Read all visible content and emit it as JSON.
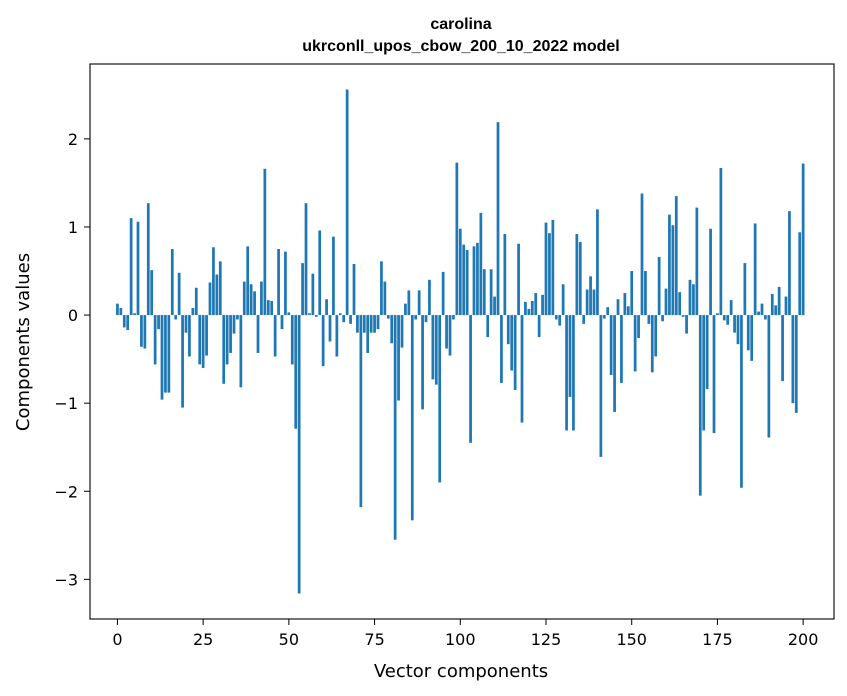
{
  "chart_data": {
    "type": "bar",
    "title": "carolina",
    "subtitle": "ukrconll_upos_cbow_200_10_2022 model",
    "xlabel": "Vector components",
    "ylabel": "Components values",
    "xlim": [
      -8,
      209
    ],
    "ylim": [
      -3.45,
      2.85
    ],
    "xticks": [
      0,
      25,
      50,
      75,
      100,
      125,
      150,
      175,
      200
    ],
    "yticks": [
      -3,
      -2,
      -1,
      0,
      1,
      2
    ],
    "grid": false,
    "color": "#1f77b4",
    "values": [
      0.13,
      0.08,
      -0.14,
      -0.17,
      1.1,
      0.02,
      1.06,
      -0.36,
      -0.38,
      1.27,
      0.51,
      -0.56,
      -0.16,
      -0.96,
      -0.88,
      -0.88,
      0.75,
      -0.05,
      0.48,
      -1.05,
      -0.2,
      -0.47,
      0.08,
      0.31,
      -0.56,
      -0.6,
      -0.46,
      0.37,
      0.77,
      0.46,
      0.61,
      -0.78,
      -0.56,
      -0.43,
      -0.21,
      -0.05,
      -0.82,
      0.38,
      0.78,
      0.35,
      0.27,
      -0.43,
      0.38,
      1.66,
      0.17,
      0.16,
      -0.47,
      0.75,
      -0.16,
      0.72,
      0.03,
      -0.56,
      -1.29,
      -3.16,
      0.59,
      1.27,
      0.02,
      0.47,
      -0.02,
      0.96,
      -0.58,
      0.18,
      -0.3,
      0.89,
      -0.47,
      0.02,
      -0.08,
      2.56,
      -0.1,
      0.58,
      -0.2,
      -2.18,
      -0.2,
      -0.43,
      -0.2,
      -0.2,
      -0.16,
      0.61,
      0.38,
      -0.04,
      -0.32,
      -2.55,
      -0.97,
      -0.37,
      0.13,
      0.28,
      -2.33,
      -0.05,
      0.28,
      -1.07,
      -0.08,
      0.4,
      -0.73,
      -0.79,
      -1.9,
      0.49,
      -0.38,
      -0.46,
      -0.05,
      1.73,
      0.98,
      0.8,
      0.74,
      -1.45,
      0.78,
      0.82,
      1.16,
      0.52,
      -0.25,
      0.52,
      0.21,
      2.19,
      -0.77,
      0.92,
      -0.33,
      -0.63,
      -0.85,
      0.81,
      -1.22,
      0.15,
      0.07,
      0.16,
      0.25,
      -0.25,
      0.23,
      1.05,
      0.93,
      1.08,
      -0.05,
      -0.12,
      0.35,
      -1.31,
      -0.93,
      -1.31,
      0.92,
      0.83,
      -0.1,
      0.29,
      0.44,
      0.29,
      1.2,
      -1.61,
      -0.04,
      0.09,
      -0.68,
      -1.1,
      0.18,
      -0.77,
      0.25,
      0.1,
      0.5,
      -0.64,
      -0.26,
      1.38,
      0.5,
      -0.1,
      -0.65,
      -0.47,
      0.66,
      -0.07,
      0.3,
      1.14,
      1.02,
      1.35,
      0.26,
      -0.02,
      -0.21,
      0.4,
      0.35,
      1.22,
      -2.05,
      -1.31,
      -0.84,
      0.98,
      -1.34,
      0.02,
      1.67,
      -0.06,
      -0.11,
      0.17,
      -0.2,
      -0.33,
      -1.96,
      0.59,
      -0.4,
      -0.52,
      1.04,
      0.04,
      0.13,
      -0.05,
      -1.39,
      0.24,
      0.11,
      0.32,
      -0.75,
      0.21,
      1.18,
      -1.0,
      -1.11,
      0.94,
      1.72
    ]
  }
}
